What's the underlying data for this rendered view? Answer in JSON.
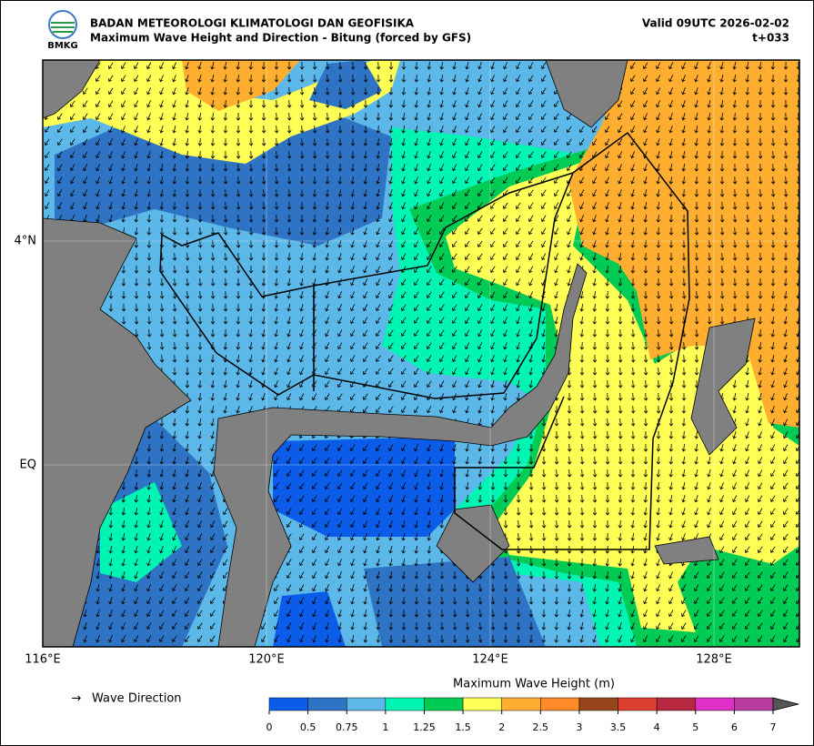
{
  "header": {
    "logo": "BMKG",
    "agency": "BADAN METEOROLOGI KLIMATOLOGI DAN GEOFISIKA",
    "product": "Maximum Wave Height and Direction - Bitung (forced by GFS)",
    "valid": "Valid 09UTC 2026-02-02",
    "lead": "t+033"
  },
  "map": {
    "lon_labels": [
      "116°E",
      "120°E",
      "124°E",
      "128°E"
    ],
    "lat_labels": [
      "4°N",
      "EQ"
    ]
  },
  "legend": {
    "arrow": "→",
    "direction": "Wave Direction"
  },
  "colorbar": {
    "title": "Maximum Wave Height (m)",
    "levels": [
      0,
      0.5,
      0.75,
      1,
      1.25,
      1.5,
      2,
      2.5,
      3,
      3.5,
      4,
      5,
      6,
      7
    ],
    "colors": [
      "#0b5ce8",
      "#2f74c4",
      "#5cb8e8",
      "#00f5b4",
      "#00cc55",
      "#ffff55",
      "#ffae30",
      "#ff8a28",
      "#96461a",
      "#de4030",
      "#b82840",
      "#e030c8",
      "#b83ca0"
    ]
  }
}
